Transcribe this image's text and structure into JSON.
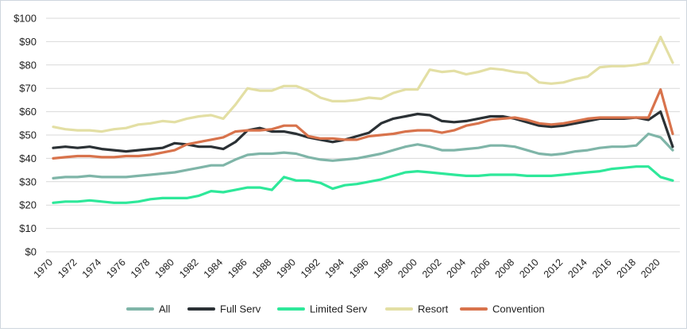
{
  "chart_data": {
    "type": "line",
    "title": "",
    "xlabel": "",
    "ylabel": "",
    "x": [
      1970,
      1971,
      1972,
      1973,
      1974,
      1975,
      1976,
      1977,
      1978,
      1979,
      1980,
      1981,
      1982,
      1983,
      1984,
      1985,
      1986,
      1987,
      1988,
      1989,
      1990,
      1991,
      1992,
      1993,
      1994,
      1995,
      1996,
      1997,
      1998,
      1999,
      2000,
      2001,
      2002,
      2003,
      2004,
      2005,
      2006,
      2007,
      2008,
      2009,
      2010,
      2011,
      2012,
      2013,
      2014,
      2015,
      2016,
      2017,
      2018,
      2019,
      2020,
      2021
    ],
    "xticks": [
      "1970",
      "1972",
      "1974",
      "1976",
      "1978",
      "1980",
      "1982",
      "1984",
      "1986",
      "1988",
      "1990",
      "1992",
      "1994",
      "1996",
      "1998",
      "2000",
      "2002",
      "2004",
      "2006",
      "2008",
      "2010",
      "2012",
      "2014",
      "2016",
      "2018",
      "2020"
    ],
    "ylim": [
      0,
      100
    ],
    "yticks": [
      "$0",
      "$10",
      "$20",
      "$30",
      "$40",
      "$50",
      "$60",
      "$70",
      "$80",
      "$90",
      "$100"
    ],
    "grid": "horizontal",
    "legend_position": "bottom",
    "series": [
      {
        "name": "All",
        "color": "#7fb5a8",
        "values": [
          31.5,
          32,
          32,
          32.5,
          32,
          32,
          32,
          32.5,
          33,
          33.5,
          34,
          35,
          36,
          37,
          37,
          39.5,
          41.5,
          42,
          42,
          42.5,
          42,
          40.5,
          39.5,
          39,
          39.5,
          40,
          41,
          42,
          43.5,
          45,
          46,
          45,
          43.5,
          43.5,
          44,
          44.5,
          45.5,
          45.5,
          45,
          43.5,
          42,
          41.5,
          42,
          43,
          43.5,
          44.5,
          45,
          45,
          45.5,
          50.5,
          49,
          43.5
        ]
      },
      {
        "name": "Full Serv",
        "color": "#2b3135",
        "values": [
          44.5,
          45,
          44.5,
          45,
          44,
          43.5,
          43,
          43.5,
          44,
          44.5,
          46.5,
          46,
          45,
          45,
          44,
          47,
          52,
          53,
          51.5,
          51.5,
          50.5,
          49,
          48,
          47,
          48,
          49.5,
          51,
          55,
          57,
          58,
          59,
          58.5,
          56,
          55.5,
          56,
          57,
          58,
          58,
          57,
          55.5,
          54,
          53.5,
          54,
          55,
          56,
          57,
          57,
          57,
          57.5,
          56.5,
          60,
          45
        ]
      },
      {
        "name": "Limited Serv",
        "color": "#2ee89a",
        "values": [
          21,
          21.5,
          21.5,
          22,
          21.5,
          21,
          21,
          21.5,
          22.5,
          23,
          23,
          23,
          24,
          26,
          25.5,
          26.5,
          27.5,
          27.5,
          26.5,
          32,
          30.5,
          30.5,
          29.5,
          27,
          28.5,
          29,
          30,
          31,
          32.5,
          34,
          34.5,
          34,
          33.5,
          33,
          32.5,
          32.5,
          33,
          33,
          33,
          32.5,
          32.5,
          32.5,
          33,
          33.5,
          34,
          34.5,
          35.5,
          36,
          36.5,
          36.5,
          32,
          30.5
        ]
      },
      {
        "name": "Resort",
        "color": "#e3dfa4",
        "values": [
          53.5,
          52.5,
          52,
          52,
          51.5,
          52.5,
          53,
          54.5,
          55,
          56,
          55.5,
          57,
          58,
          58.5,
          57,
          63,
          70,
          69,
          69,
          71,
          71,
          69,
          66,
          64.5,
          64.5,
          65,
          66,
          65.5,
          68,
          69.5,
          69.5,
          78,
          77,
          77.5,
          76,
          77,
          78.5,
          78,
          77,
          76.5,
          72.5,
          72,
          72.5,
          74,
          75,
          79,
          79.5,
          79.5,
          80,
          81,
          92,
          81
        ]
      },
      {
        "name": "Convention",
        "color": "#d8734c",
        "values": [
          40,
          40.5,
          41,
          41,
          40.5,
          40.5,
          41,
          41,
          41.5,
          42.5,
          43.5,
          46,
          47,
          48,
          49,
          51.5,
          52,
          52,
          52.5,
          54,
          54,
          49.5,
          48.5,
          48.5,
          48,
          48,
          49.5,
          50,
          50.5,
          51.5,
          52,
          52,
          51,
          52,
          54,
          55,
          56.5,
          57,
          57.5,
          56.5,
          55,
          54.5,
          55,
          56,
          57,
          57.5,
          57.5,
          57.5,
          57.5,
          57.5,
          69.5,
          50.5
        ]
      }
    ]
  }
}
